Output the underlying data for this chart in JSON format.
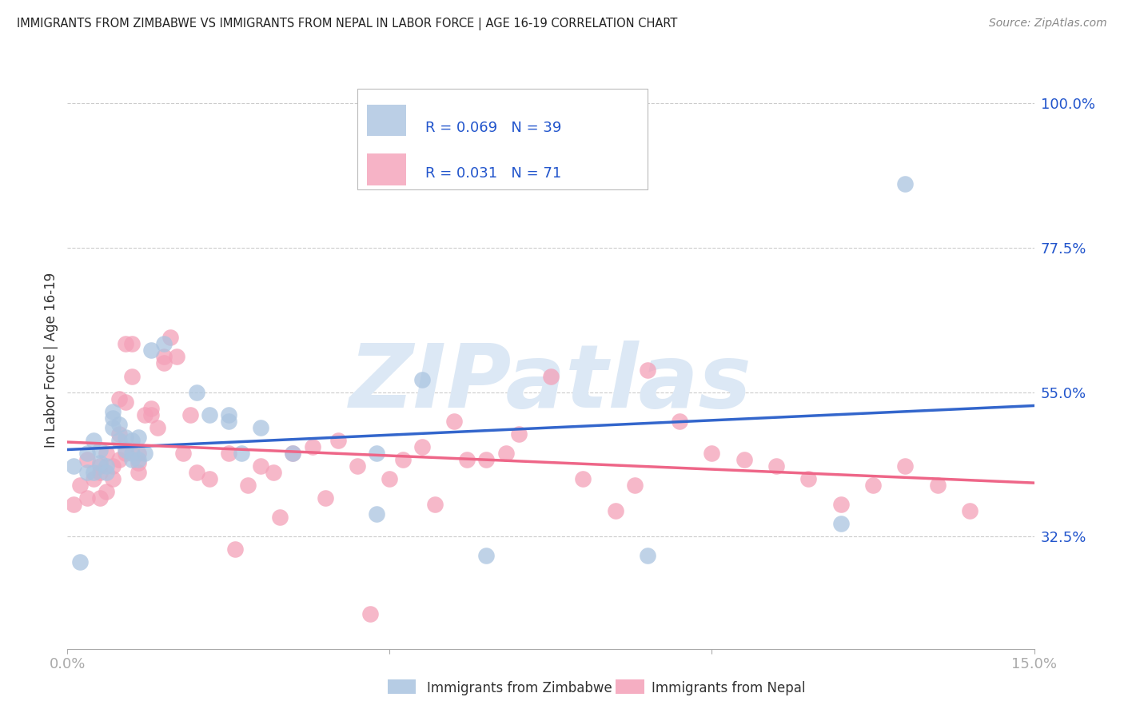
{
  "title": "IMMIGRANTS FROM ZIMBABWE VS IMMIGRANTS FROM NEPAL IN LABOR FORCE | AGE 16-19 CORRELATION CHART",
  "source": "Source: ZipAtlas.com",
  "ylabel": "In Labor Force | Age 16-19",
  "xlim": [
    0.0,
    0.15
  ],
  "ylim": [
    0.15,
    1.05
  ],
  "yticks_right": [
    0.325,
    0.55,
    0.775,
    1.0
  ],
  "yticklabels_right": [
    "32.5%",
    "55.0%",
    "77.5%",
    "100.0%"
  ],
  "grid_color": "#cccccc",
  "background_color": "#ffffff",
  "zimbabwe_color": "#aac4e0",
  "nepal_color": "#f4a0b8",
  "zimbabwe_R": 0.069,
  "zimbabwe_N": 39,
  "nepal_R": 0.031,
  "nepal_N": 71,
  "trend_zimbabwe_color": "#3366cc",
  "trend_nepal_color": "#ee6688",
  "watermark_text": "ZIPatlas",
  "watermark_color": "#dce8f5",
  "zimbabwe_x": [
    0.001,
    0.002,
    0.003,
    0.003,
    0.004,
    0.004,
    0.005,
    0.005,
    0.006,
    0.006,
    0.007,
    0.007,
    0.007,
    0.008,
    0.008,
    0.009,
    0.009,
    0.01,
    0.01,
    0.01,
    0.011,
    0.011,
    0.012,
    0.013,
    0.015,
    0.02,
    0.022,
    0.025,
    0.025,
    0.027,
    0.03,
    0.035,
    0.048,
    0.048,
    0.055,
    0.065,
    0.09,
    0.12,
    0.13
  ],
  "zimbabwe_y": [
    0.435,
    0.285,
    0.425,
    0.455,
    0.475,
    0.425,
    0.44,
    0.46,
    0.435,
    0.425,
    0.51,
    0.52,
    0.495,
    0.475,
    0.5,
    0.46,
    0.48,
    0.455,
    0.475,
    0.445,
    0.48,
    0.445,
    0.455,
    0.615,
    0.625,
    0.55,
    0.515,
    0.515,
    0.505,
    0.455,
    0.495,
    0.455,
    0.455,
    0.36,
    0.57,
    0.295,
    0.295,
    0.345,
    0.875
  ],
  "nepal_x": [
    0.001,
    0.002,
    0.003,
    0.003,
    0.004,
    0.005,
    0.005,
    0.005,
    0.006,
    0.006,
    0.007,
    0.007,
    0.008,
    0.008,
    0.009,
    0.009,
    0.01,
    0.01,
    0.011,
    0.011,
    0.012,
    0.013,
    0.014,
    0.015,
    0.016,
    0.017,
    0.018,
    0.019,
    0.02,
    0.022,
    0.025,
    0.026,
    0.028,
    0.03,
    0.032,
    0.033,
    0.035,
    0.038,
    0.04,
    0.042,
    0.045,
    0.047,
    0.05,
    0.052,
    0.055,
    0.057,
    0.06,
    0.062,
    0.065,
    0.068,
    0.07,
    0.075,
    0.08,
    0.085,
    0.088,
    0.09,
    0.095,
    0.1,
    0.105,
    0.11,
    0.115,
    0.12,
    0.125,
    0.13,
    0.135,
    0.14,
    0.008,
    0.009,
    0.011,
    0.013,
    0.015
  ],
  "nepal_y": [
    0.375,
    0.405,
    0.385,
    0.445,
    0.415,
    0.435,
    0.385,
    0.425,
    0.455,
    0.395,
    0.435,
    0.415,
    0.485,
    0.445,
    0.535,
    0.625,
    0.625,
    0.575,
    0.455,
    0.425,
    0.515,
    0.525,
    0.495,
    0.605,
    0.635,
    0.605,
    0.455,
    0.515,
    0.425,
    0.415,
    0.455,
    0.305,
    0.405,
    0.435,
    0.425,
    0.355,
    0.455,
    0.465,
    0.385,
    0.475,
    0.435,
    0.205,
    0.415,
    0.445,
    0.465,
    0.375,
    0.505,
    0.445,
    0.445,
    0.455,
    0.485,
    0.575,
    0.415,
    0.365,
    0.405,
    0.585,
    0.505,
    0.455,
    0.445,
    0.435,
    0.415,
    0.375,
    0.405,
    0.435,
    0.405,
    0.365,
    0.54,
    0.455,
    0.44,
    0.515,
    0.595
  ]
}
